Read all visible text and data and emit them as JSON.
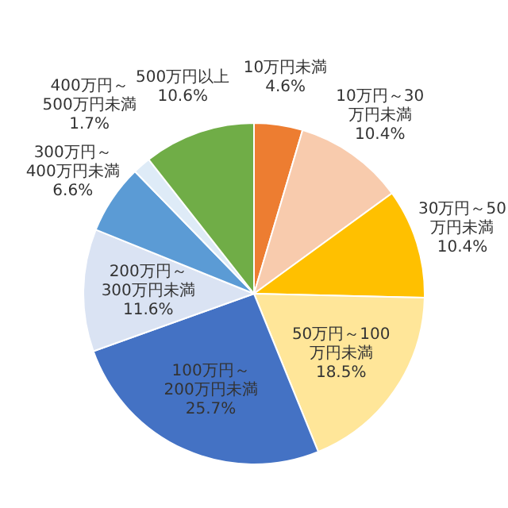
{
  "chart_data": {
    "type": "pie",
    "categories": [
      "10万円未満",
      "10万円～30万円未満",
      "30万円～50万円未満",
      "50万円～100万円未満",
      "100万円～200万円未満",
      "200万円～300万円未満",
      "300万円～400万円未満",
      "400万円～500万円未満",
      "500万円以上"
    ],
    "values": [
      4.6,
      10.4,
      10.4,
      18.5,
      25.7,
      11.6,
      6.6,
      1.7,
      10.6
    ],
    "colors": [
      "#ed7d31",
      "#f8cbad",
      "#ffc000",
      "#ffe699",
      "#4472c4",
      "#dae3f3",
      "#5b9bd5",
      "#deebf7",
      "#70ad47"
    ],
    "value_labels": [
      "4.6%",
      "10.4%",
      "10.4%",
      "18.5%",
      "25.7%",
      "11.6%",
      "6.6%",
      "1.7%",
      "10.6%"
    ],
    "legend": false
  }
}
